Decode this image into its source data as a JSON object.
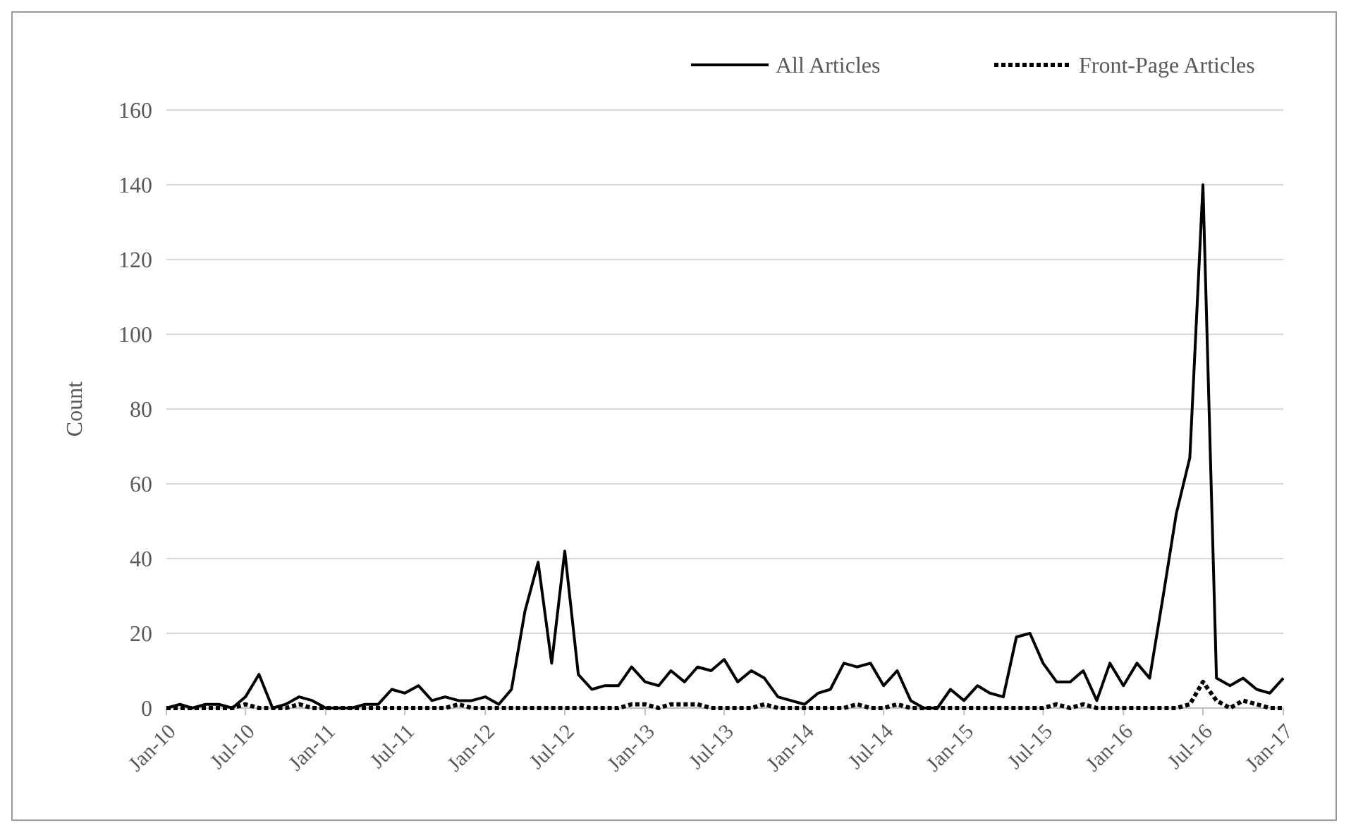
{
  "chart_data": {
    "type": "line",
    "ylabel": "Count",
    "legend": "top right",
    "grid": "y",
    "x": [
      "2010-01",
      "2010-02",
      "2010-03",
      "2010-04",
      "2010-05",
      "2010-06",
      "2010-07",
      "2010-08",
      "2010-09",
      "2010-10",
      "2010-11",
      "2010-12",
      "2011-01",
      "2011-02",
      "2011-03",
      "2011-04",
      "2011-05",
      "2011-06",
      "2011-07",
      "2011-08",
      "2011-09",
      "2011-10",
      "2011-11",
      "2011-12",
      "2012-01",
      "2012-02",
      "2012-03",
      "2012-04",
      "2012-05",
      "2012-06",
      "2012-07",
      "2012-08",
      "2012-09",
      "2012-10",
      "2012-11",
      "2012-12",
      "2013-01",
      "2013-02",
      "2013-03",
      "2013-04",
      "2013-05",
      "2013-06",
      "2013-07",
      "2013-08",
      "2013-09",
      "2013-10",
      "2013-11",
      "2013-12",
      "2014-01",
      "2014-02",
      "2014-03",
      "2014-04",
      "2014-05",
      "2014-06",
      "2014-07",
      "2014-08",
      "2014-09",
      "2014-10",
      "2014-11",
      "2014-12",
      "2015-01",
      "2015-02",
      "2015-03",
      "2015-04",
      "2015-05",
      "2015-06",
      "2015-07",
      "2015-08",
      "2015-09",
      "2015-10",
      "2015-11",
      "2015-12",
      "2016-01",
      "2016-02",
      "2016-03",
      "2016-04",
      "2016-05",
      "2016-06",
      "2016-07",
      "2016-08",
      "2016-09",
      "2016-10",
      "2016-11",
      "2016-12",
      "2017-01"
    ],
    "xlim": [
      "2010-01",
      "2017-01"
    ],
    "xticks": [
      {
        "value": "2010-01",
        "label": "Jan-10"
      },
      {
        "value": "2010-07",
        "label": "Jul-10"
      },
      {
        "value": "2011-01",
        "label": "Jan-11"
      },
      {
        "value": "2011-07",
        "label": "Jul-11"
      },
      {
        "value": "2012-01",
        "label": "Jan-12"
      },
      {
        "value": "2012-07",
        "label": "Jul-12"
      },
      {
        "value": "2013-01",
        "label": "Jan-13"
      },
      {
        "value": "2013-07",
        "label": "Jul-13"
      },
      {
        "value": "2014-01",
        "label": "Jan-14"
      },
      {
        "value": "2014-07",
        "label": "Jul-14"
      },
      {
        "value": "2015-01",
        "label": "Jan-15"
      },
      {
        "value": "2015-07",
        "label": "Jul-15"
      },
      {
        "value": "2016-01",
        "label": "Jan-16"
      },
      {
        "value": "2016-07",
        "label": "Jul-16"
      },
      {
        "value": "2017-01",
        "label": "Jan-17"
      }
    ],
    "ylim": [
      0,
      160
    ],
    "yticks": [
      0,
      20,
      40,
      60,
      80,
      100,
      120,
      140,
      160
    ],
    "series": [
      {
        "name": "All Articles",
        "color": "#000000",
        "line_style": "solid",
        "values": [
          0,
          1,
          0,
          1,
          1,
          0,
          3,
          9,
          0,
          1,
          3,
          2,
          0,
          0,
          0,
          1,
          1,
          5,
          4,
          6,
          2,
          3,
          2,
          2,
          3,
          1,
          5,
          26,
          39,
          12,
          42,
          9,
          5,
          6,
          6,
          11,
          7,
          6,
          10,
          7,
          11,
          10,
          13,
          7,
          10,
          8,
          3,
          2,
          1,
          4,
          5,
          12,
          11,
          12,
          6,
          10,
          2,
          0,
          0,
          5,
          2,
          6,
          4,
          3,
          19,
          20,
          12,
          7,
          7,
          10,
          2,
          12,
          6,
          12,
          8,
          30,
          52,
          67,
          140,
          8,
          6,
          8,
          5,
          4,
          8
        ]
      },
      {
        "name": "Front-Page Articles",
        "color": "#000000",
        "line_style": "dotted",
        "values": [
          0,
          0,
          0,
          0,
          0,
          0,
          1,
          0,
          0,
          0,
          1,
          0,
          0,
          0,
          0,
          0,
          0,
          0,
          0,
          0,
          0,
          0,
          1,
          0,
          0,
          0,
          0,
          0,
          0,
          0,
          0,
          0,
          0,
          0,
          0,
          1,
          1,
          0,
          1,
          1,
          1,
          0,
          0,
          0,
          0,
          1,
          0,
          0,
          0,
          0,
          0,
          0,
          1,
          0,
          0,
          1,
          0,
          0,
          0,
          0,
          0,
          0,
          0,
          0,
          0,
          0,
          0,
          1,
          0,
          1,
          0,
          0,
          0,
          0,
          0,
          0,
          0,
          1,
          7,
          2,
          0,
          2,
          1,
          0,
          0
        ]
      }
    ]
  }
}
